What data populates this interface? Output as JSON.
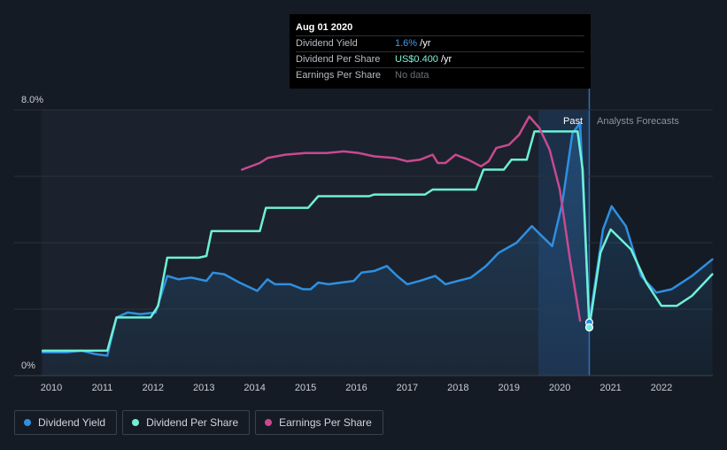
{
  "tooltip": {
    "date": "Aug 01 2020",
    "rows": [
      {
        "label": "Dividend Yield",
        "value": "1.6%",
        "suffix": " /yr"
      },
      {
        "label": "Dividend Per Share",
        "value": "US$0.400",
        "suffix": " /yr"
      },
      {
        "label": "Earnings Per Share",
        "value": "No data",
        "suffix": ""
      }
    ]
  },
  "labels": {
    "past": "Past",
    "forecast": "Analysts Forecasts"
  },
  "legend": [
    {
      "label": "Dividend Yield",
      "color": "#2f8fe0"
    },
    {
      "label": "Dividend Per Share",
      "color": "#6ff0d6"
    },
    {
      "label": "Earnings Per Share",
      "color": "#c84a8e"
    }
  ],
  "chart_data": {
    "type": "line",
    "ylim": [
      0,
      8
    ],
    "y_tick_labels": [
      "8.0%",
      "0%"
    ],
    "x_ticks": [
      2010,
      2011,
      2012,
      2013,
      2014,
      2015,
      2016,
      2017,
      2018,
      2019,
      2020,
      2021,
      2022
    ],
    "xlim": [
      2009.8,
      2023.0
    ],
    "past_end": 2020.58,
    "highlight_start": 2019.58,
    "series": [
      {
        "name": "Dividend Yield",
        "color": "#2f8fe0",
        "points": [
          [
            2009.83,
            0.7
          ],
          [
            2010.3,
            0.7
          ],
          [
            2010.6,
            0.75
          ],
          [
            2010.85,
            0.65
          ],
          [
            2011.1,
            0.6
          ],
          [
            2011.28,
            1.75
          ],
          [
            2011.5,
            1.9
          ],
          [
            2011.75,
            1.85
          ],
          [
            2012.05,
            1.9
          ],
          [
            2012.28,
            3.0
          ],
          [
            2012.5,
            2.9
          ],
          [
            2012.75,
            2.95
          ],
          [
            2013.05,
            2.85
          ],
          [
            2013.18,
            3.1
          ],
          [
            2013.4,
            3.05
          ],
          [
            2013.7,
            2.8
          ],
          [
            2014.05,
            2.55
          ],
          [
            2014.25,
            2.9
          ],
          [
            2014.4,
            2.75
          ],
          [
            2014.7,
            2.75
          ],
          [
            2014.95,
            2.6
          ],
          [
            2015.1,
            2.6
          ],
          [
            2015.25,
            2.8
          ],
          [
            2015.45,
            2.75
          ],
          [
            2015.7,
            2.8
          ],
          [
            2015.95,
            2.85
          ],
          [
            2016.1,
            3.1
          ],
          [
            2016.35,
            3.15
          ],
          [
            2016.6,
            3.3
          ],
          [
            2016.8,
            3.0
          ],
          [
            2017.0,
            2.75
          ],
          [
            2017.25,
            2.85
          ],
          [
            2017.55,
            3.0
          ],
          [
            2017.75,
            2.75
          ],
          [
            2018.0,
            2.85
          ],
          [
            2018.25,
            2.95
          ],
          [
            2018.55,
            3.3
          ],
          [
            2018.8,
            3.7
          ],
          [
            2019.15,
            4.0
          ],
          [
            2019.45,
            4.5
          ],
          [
            2019.58,
            4.3
          ],
          [
            2019.85,
            3.9
          ],
          [
            2020.05,
            5.2
          ],
          [
            2020.25,
            7.3
          ],
          [
            2020.4,
            7.6
          ],
          [
            2020.58,
            1.6
          ],
          [
            2020.85,
            4.4
          ],
          [
            2021.02,
            5.1
          ],
          [
            2021.3,
            4.5
          ],
          [
            2021.6,
            3.0
          ],
          [
            2021.9,
            2.5
          ],
          [
            2022.2,
            2.6
          ],
          [
            2022.6,
            3.0
          ],
          [
            2023.0,
            3.5
          ]
        ]
      },
      {
        "name": "Dividend Per Share",
        "color": "#6ff0d6",
        "points": [
          [
            2009.83,
            0.75
          ],
          [
            2011.1,
            0.75
          ],
          [
            2011.28,
            1.75
          ],
          [
            2011.95,
            1.75
          ],
          [
            2012.1,
            2.1
          ],
          [
            2012.28,
            3.55
          ],
          [
            2012.9,
            3.55
          ],
          [
            2013.05,
            3.6
          ],
          [
            2013.15,
            4.35
          ],
          [
            2014.1,
            4.35
          ],
          [
            2014.22,
            5.05
          ],
          [
            2015.05,
            5.05
          ],
          [
            2015.25,
            5.4
          ],
          [
            2016.25,
            5.4
          ],
          [
            2016.35,
            5.45
          ],
          [
            2017.35,
            5.45
          ],
          [
            2017.5,
            5.6
          ],
          [
            2018.35,
            5.6
          ],
          [
            2018.5,
            6.2
          ],
          [
            2018.9,
            6.2
          ],
          [
            2019.05,
            6.5
          ],
          [
            2019.35,
            6.5
          ],
          [
            2019.5,
            7.35
          ],
          [
            2020.35,
            7.35
          ],
          [
            2020.45,
            6.2
          ],
          [
            2020.58,
            1.45
          ],
          [
            2020.8,
            3.7
          ],
          [
            2021.0,
            4.4
          ],
          [
            2021.4,
            3.8
          ],
          [
            2021.7,
            2.8
          ],
          [
            2022.0,
            2.1
          ],
          [
            2022.3,
            2.1
          ],
          [
            2022.6,
            2.4
          ],
          [
            2023.0,
            3.05
          ]
        ]
      },
      {
        "name": "Earnings Per Share",
        "color": "#c84a8e",
        "points": [
          [
            2013.75,
            6.2
          ],
          [
            2014.1,
            6.4
          ],
          [
            2014.25,
            6.55
          ],
          [
            2014.6,
            6.65
          ],
          [
            2015.0,
            6.7
          ],
          [
            2015.4,
            6.7
          ],
          [
            2015.75,
            6.75
          ],
          [
            2016.05,
            6.7
          ],
          [
            2016.35,
            6.6
          ],
          [
            2016.75,
            6.55
          ],
          [
            2017.0,
            6.45
          ],
          [
            2017.25,
            6.5
          ],
          [
            2017.5,
            6.65
          ],
          [
            2017.6,
            6.4
          ],
          [
            2017.75,
            6.4
          ],
          [
            2017.95,
            6.65
          ],
          [
            2018.2,
            6.5
          ],
          [
            2018.45,
            6.3
          ],
          [
            2018.6,
            6.45
          ],
          [
            2018.75,
            6.85
          ],
          [
            2019.0,
            6.95
          ],
          [
            2019.2,
            7.25
          ],
          [
            2019.4,
            7.8
          ],
          [
            2019.6,
            7.45
          ],
          [
            2019.8,
            6.8
          ],
          [
            2020.0,
            5.6
          ],
          [
            2020.2,
            3.5
          ],
          [
            2020.4,
            1.65
          ]
        ]
      }
    ]
  }
}
